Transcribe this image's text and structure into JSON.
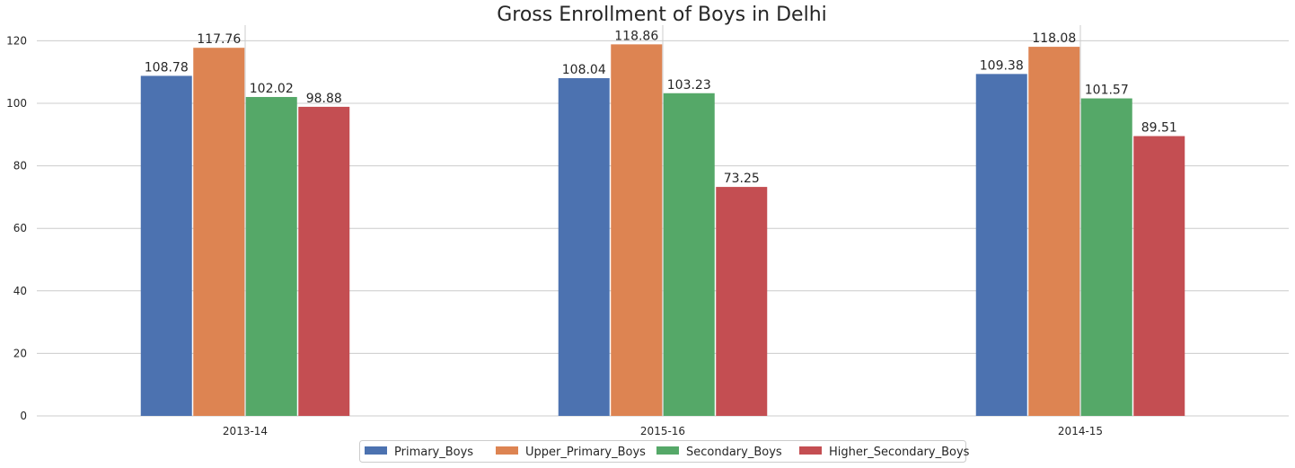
{
  "chart_data": {
    "type": "bar",
    "title": "Gross Enrollment of Boys in Delhi",
    "xlabel": "",
    "ylabel": "",
    "categories": [
      "2013-14",
      "2015-16",
      "2014-15"
    ],
    "series": [
      {
        "name": "Primary_Boys",
        "color": "#4c72b0",
        "values": [
          108.78,
          108.04,
          109.38
        ]
      },
      {
        "name": "Upper_Primary_Boys",
        "color": "#dd8452",
        "values": [
          117.76,
          118.86,
          118.08
        ]
      },
      {
        "name": "Secondary_Boys",
        "color": "#55a868",
        "values": [
          102.02,
          103.23,
          101.57
        ]
      },
      {
        "name": "Higher_Secondary_Boys",
        "color": "#c44e52",
        "values": [
          98.88,
          73.25,
          89.51
        ]
      }
    ],
    "ylim": [
      0,
      125
    ],
    "yticks": [
      0,
      20,
      40,
      60,
      80,
      100,
      120
    ],
    "grid": true,
    "legend_position": "bottom-center",
    "data_labels": true
  }
}
